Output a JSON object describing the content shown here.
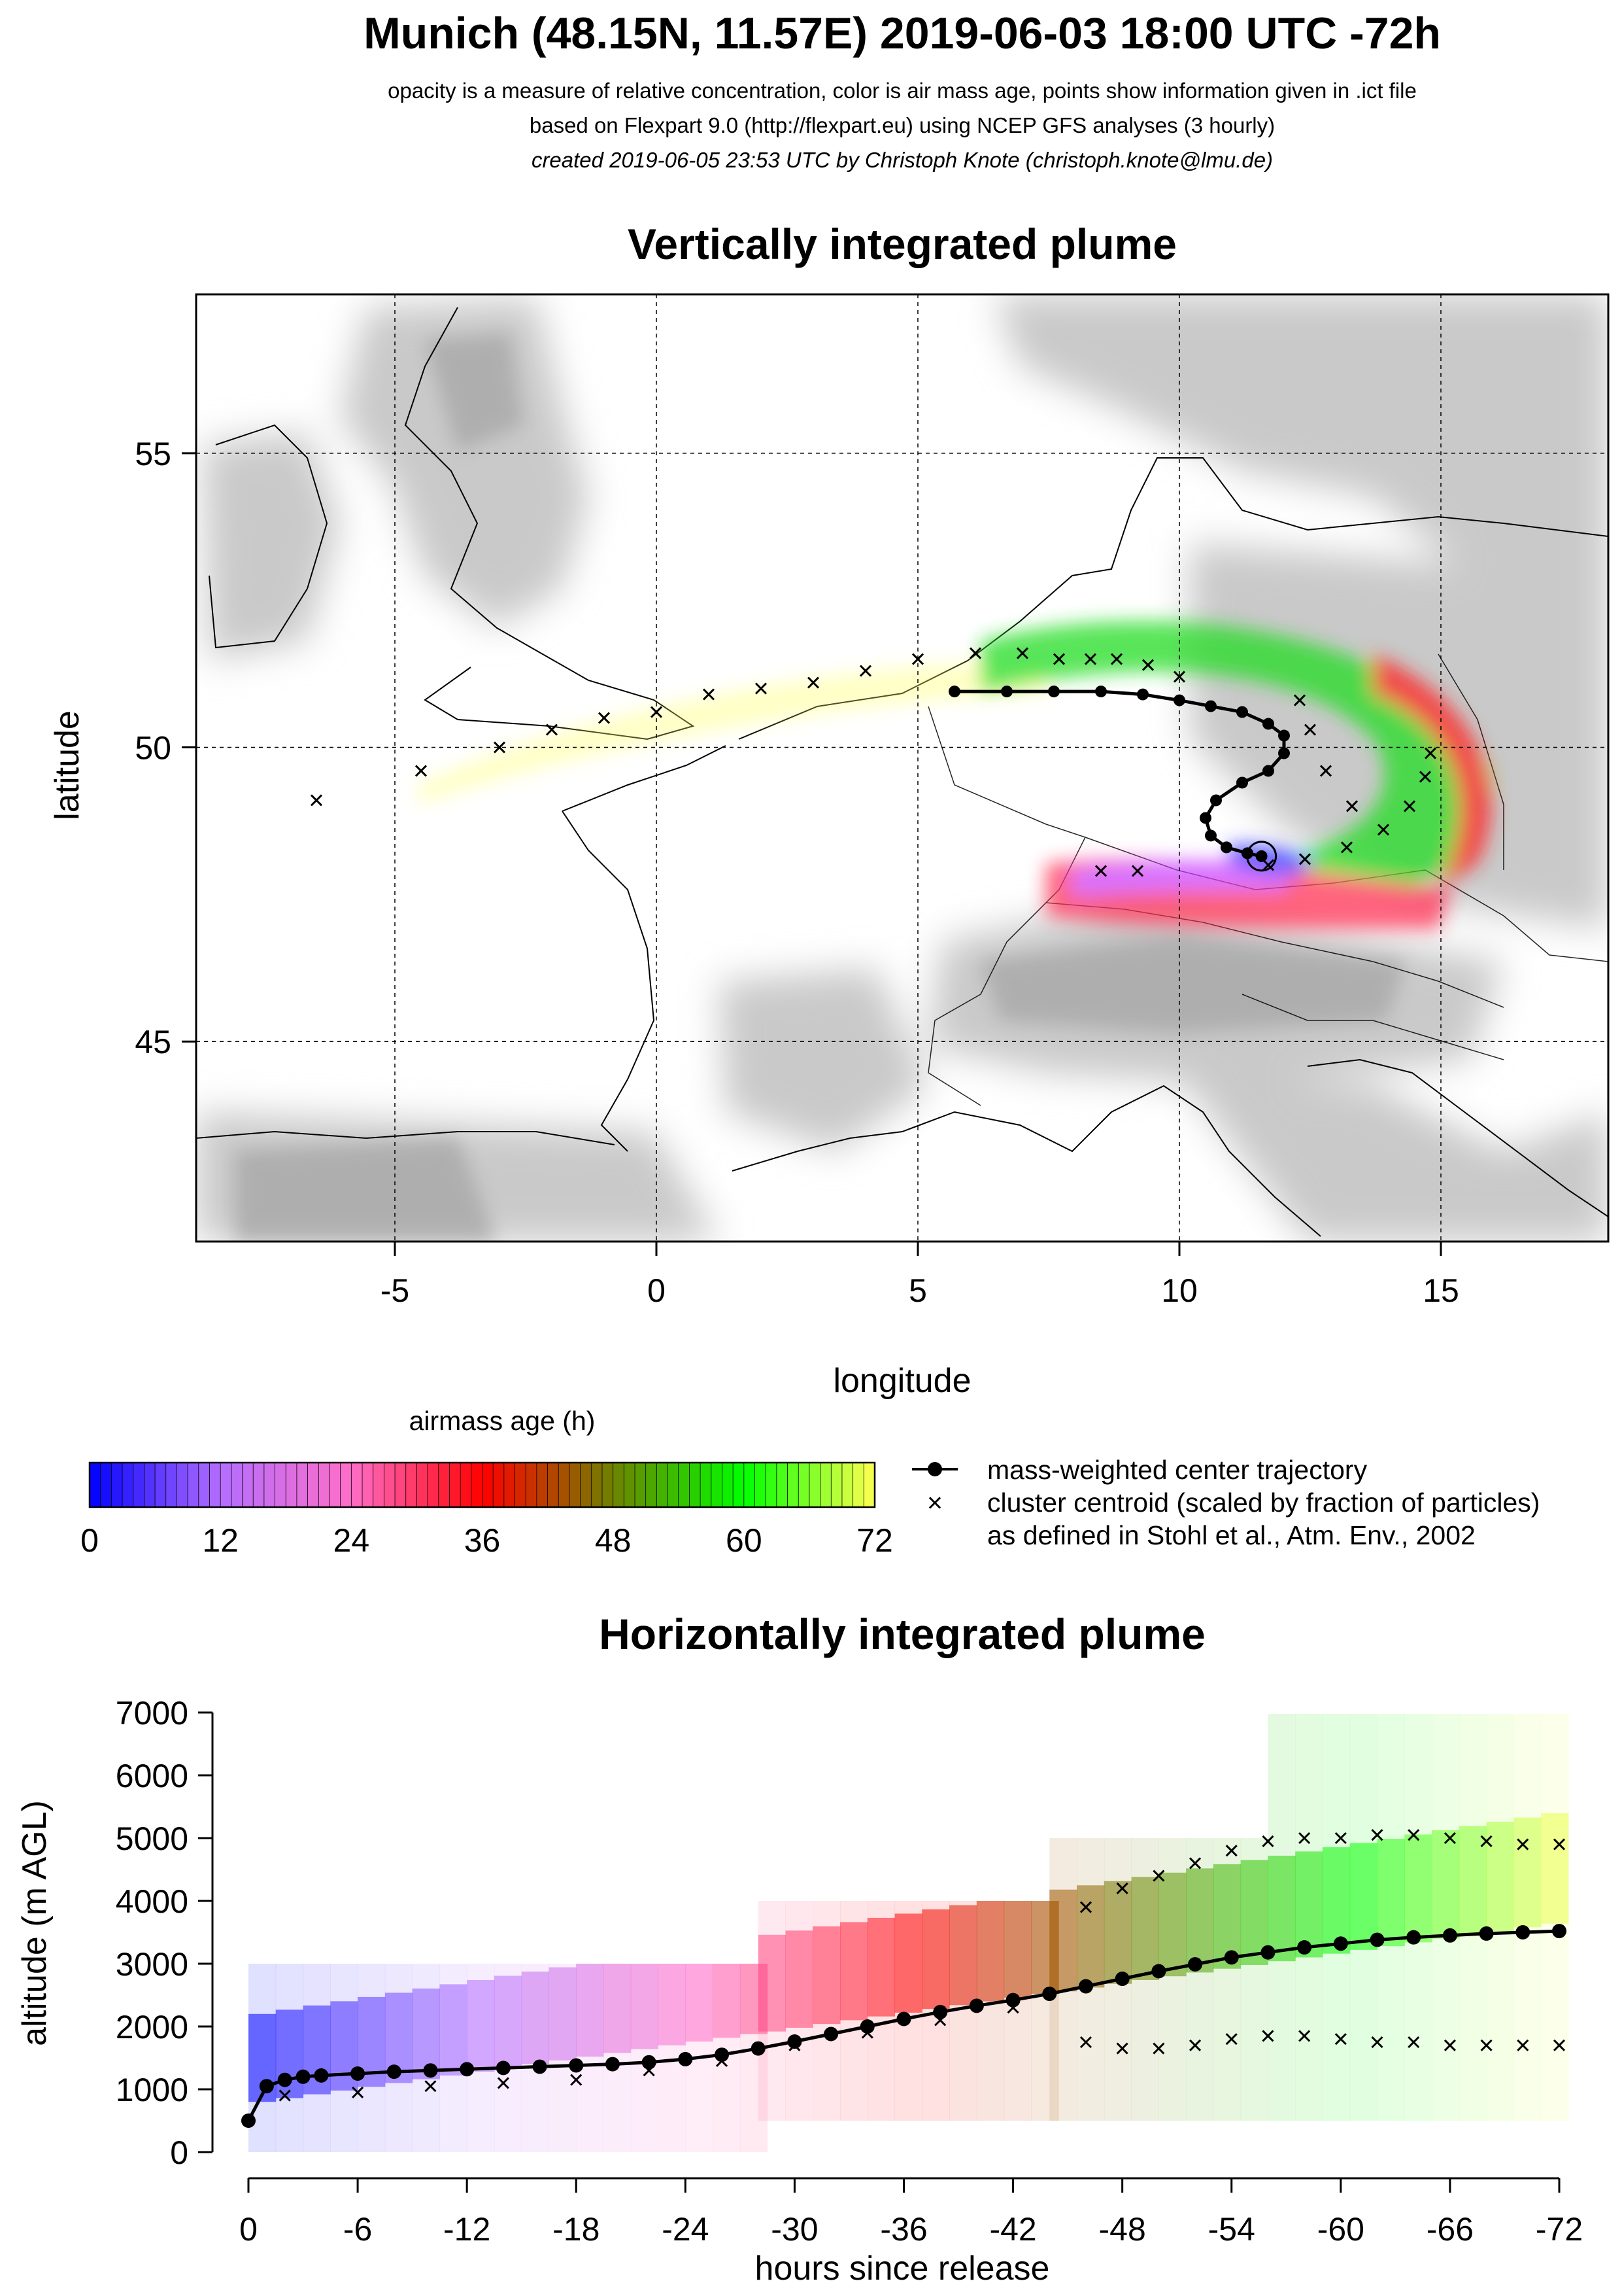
{
  "header": {
    "title": "Munich (48.15N, 11.57E) 2019-06-03 18:00 UTC -72h",
    "line1": "opacity is a measure of relative concentration, color is air mass age, points show information given in .ict file",
    "line2": "based on Flexpart 9.0 (http://flexpart.eu) using NCEP GFS analyses (3 hourly)",
    "line3": "created 2019-06-05 23:53 UTC by Christoph Knote (christoph.knote@lmu.de)"
  },
  "colors": {
    "axis": "#000000",
    "land": "#c8c8c8",
    "trajectory": "#000000",
    "age_blue": "#0000ff",
    "age_pink": "#ff66cc",
    "age_red": "#ff0000",
    "age_olive": "#808000",
    "age_green": "#00ff00",
    "age_yellow": "#ffff00"
  },
  "legend": {
    "colorbar_title": "airmass age (h)",
    "colorbar_ticks": [
      "0",
      "12",
      "24",
      "36",
      "48",
      "60",
      "72"
    ],
    "trajectory_label": "mass-weighted center trajectory",
    "cluster_label": "cluster centroid (scaled by fraction of particles)",
    "cluster_label2": "as defined in Stohl et al., Atm. Env., 2002"
  },
  "chart_data": [
    {
      "type": "scatter",
      "title": "Vertically integrated plume",
      "xlabel": "longitude",
      "ylabel": "latitude",
      "xlim": [
        -8.8,
        18.2
      ],
      "ylim": [
        41.6,
        57.7
      ],
      "xticks": [
        -5,
        0,
        5,
        10,
        15
      ],
      "yticks": [
        45,
        50,
        55
      ],
      "grid": true,
      "release": {
        "lon": 11.57,
        "lat": 48.15
      },
      "center_trajectory": {
        "lon": [
          11.57,
          11.3,
          10.9,
          10.6,
          10.5,
          10.7,
          11.2,
          11.7,
          12.0,
          12.0,
          11.7,
          11.2,
          10.6,
          10.0,
          9.3,
          8.5,
          7.6,
          6.7,
          5.7
        ],
        "lat": [
          48.15,
          48.2,
          48.3,
          48.5,
          48.8,
          49.1,
          49.4,
          49.6,
          49.9,
          50.2,
          50.4,
          50.6,
          50.7,
          50.8,
          50.9,
          50.95,
          50.95,
          50.95,
          50.95
        ]
      },
      "cluster_centroids_lon": [
        14.8,
        14.7,
        14.4,
        13.9,
        13.2,
        12.4,
        11.7,
        13.3,
        12.8,
        12.5,
        12.3,
        10.0,
        9.4,
        8.8,
        8.3,
        7.7,
        7.0,
        6.1,
        5.0,
        4.0,
        3.0,
        2.0,
        1.0,
        0.0,
        -1.0,
        -2.0,
        -3.0,
        -4.5,
        -6.5,
        9.2,
        8.5
      ],
      "cluster_centroids_lat": [
        49.9,
        49.5,
        49.0,
        48.6,
        48.3,
        48.1,
        48.0,
        49.0,
        49.6,
        50.3,
        50.8,
        51.2,
        51.4,
        51.5,
        51.5,
        51.5,
        51.6,
        51.6,
        51.5,
        51.3,
        51.1,
        51.0,
        50.9,
        50.6,
        50.5,
        50.3,
        50.0,
        49.6,
        49.1,
        47.9,
        47.9
      ]
    },
    {
      "type": "scatter",
      "title": "Horizontally integrated plume",
      "xlabel": "hours since release",
      "ylabel": "altitude (m AGL)",
      "xlim": [
        0,
        -72
      ],
      "ylim": [
        0,
        7000
      ],
      "xticks": [
        0,
        -6,
        -12,
        -18,
        -24,
        -30,
        -36,
        -42,
        -48,
        -54,
        -60,
        -66,
        -72
      ],
      "yticks": [
        0,
        1000,
        2000,
        3000,
        4000,
        5000,
        6000,
        7000
      ],
      "center_trajectory": {
        "x": [
          0,
          -1,
          -2,
          -3,
          -4,
          -6,
          -8,
          -10,
          -12,
          -14,
          -16,
          -18,
          -20,
          -22,
          -24,
          -26,
          -28,
          -30,
          -32,
          -34,
          -36,
          -38,
          -40,
          -42,
          -44,
          -46,
          -48,
          -50,
          -52,
          -54,
          -56,
          -58,
          -60,
          -62,
          -64,
          -66,
          -68,
          -70,
          -72
        ],
        "y": [
          500,
          1050,
          1150,
          1200,
          1220,
          1250,
          1280,
          1300,
          1320,
          1340,
          1360,
          1380,
          1400,
          1430,
          1480,
          1550,
          1650,
          1760,
          1880,
          2000,
          2120,
          2230,
          2330,
          2420,
          2520,
          2640,
          2760,
          2880,
          2990,
          3100,
          3180,
          3260,
          3320,
          3380,
          3420,
          3450,
          3480,
          3500,
          3520
        ]
      },
      "cluster_centroid_bands": [
        {
          "x": [
            -46,
            -48,
            -50,
            -52,
            -54,
            -56,
            -58,
            -60,
            -62,
            -64,
            -66,
            -68,
            -70,
            -72
          ],
          "y": [
            3900,
            4200,
            4400,
            4600,
            4800,
            4950,
            5000,
            5000,
            5050,
            5050,
            5000,
            4950,
            4900,
            4900
          ]
        },
        {
          "x": [
            -46,
            -48,
            -50,
            -52,
            -54,
            -56,
            -58,
            -60,
            -62,
            -64,
            -66,
            -68,
            -70,
            -72
          ],
          "y": [
            1750,
            1650,
            1650,
            1700,
            1800,
            1850,
            1850,
            1800,
            1750,
            1750,
            1700,
            1700,
            1700,
            1700
          ]
        },
        {
          "x": [
            -2,
            -6,
            -10,
            -14,
            -18,
            -22,
            -26,
            -30,
            -34,
            -38,
            -42
          ],
          "y": [
            900,
            950,
            1050,
            1100,
            1150,
            1300,
            1450,
            1700,
            1900,
            2100,
            2300
          ]
        }
      ]
    }
  ]
}
